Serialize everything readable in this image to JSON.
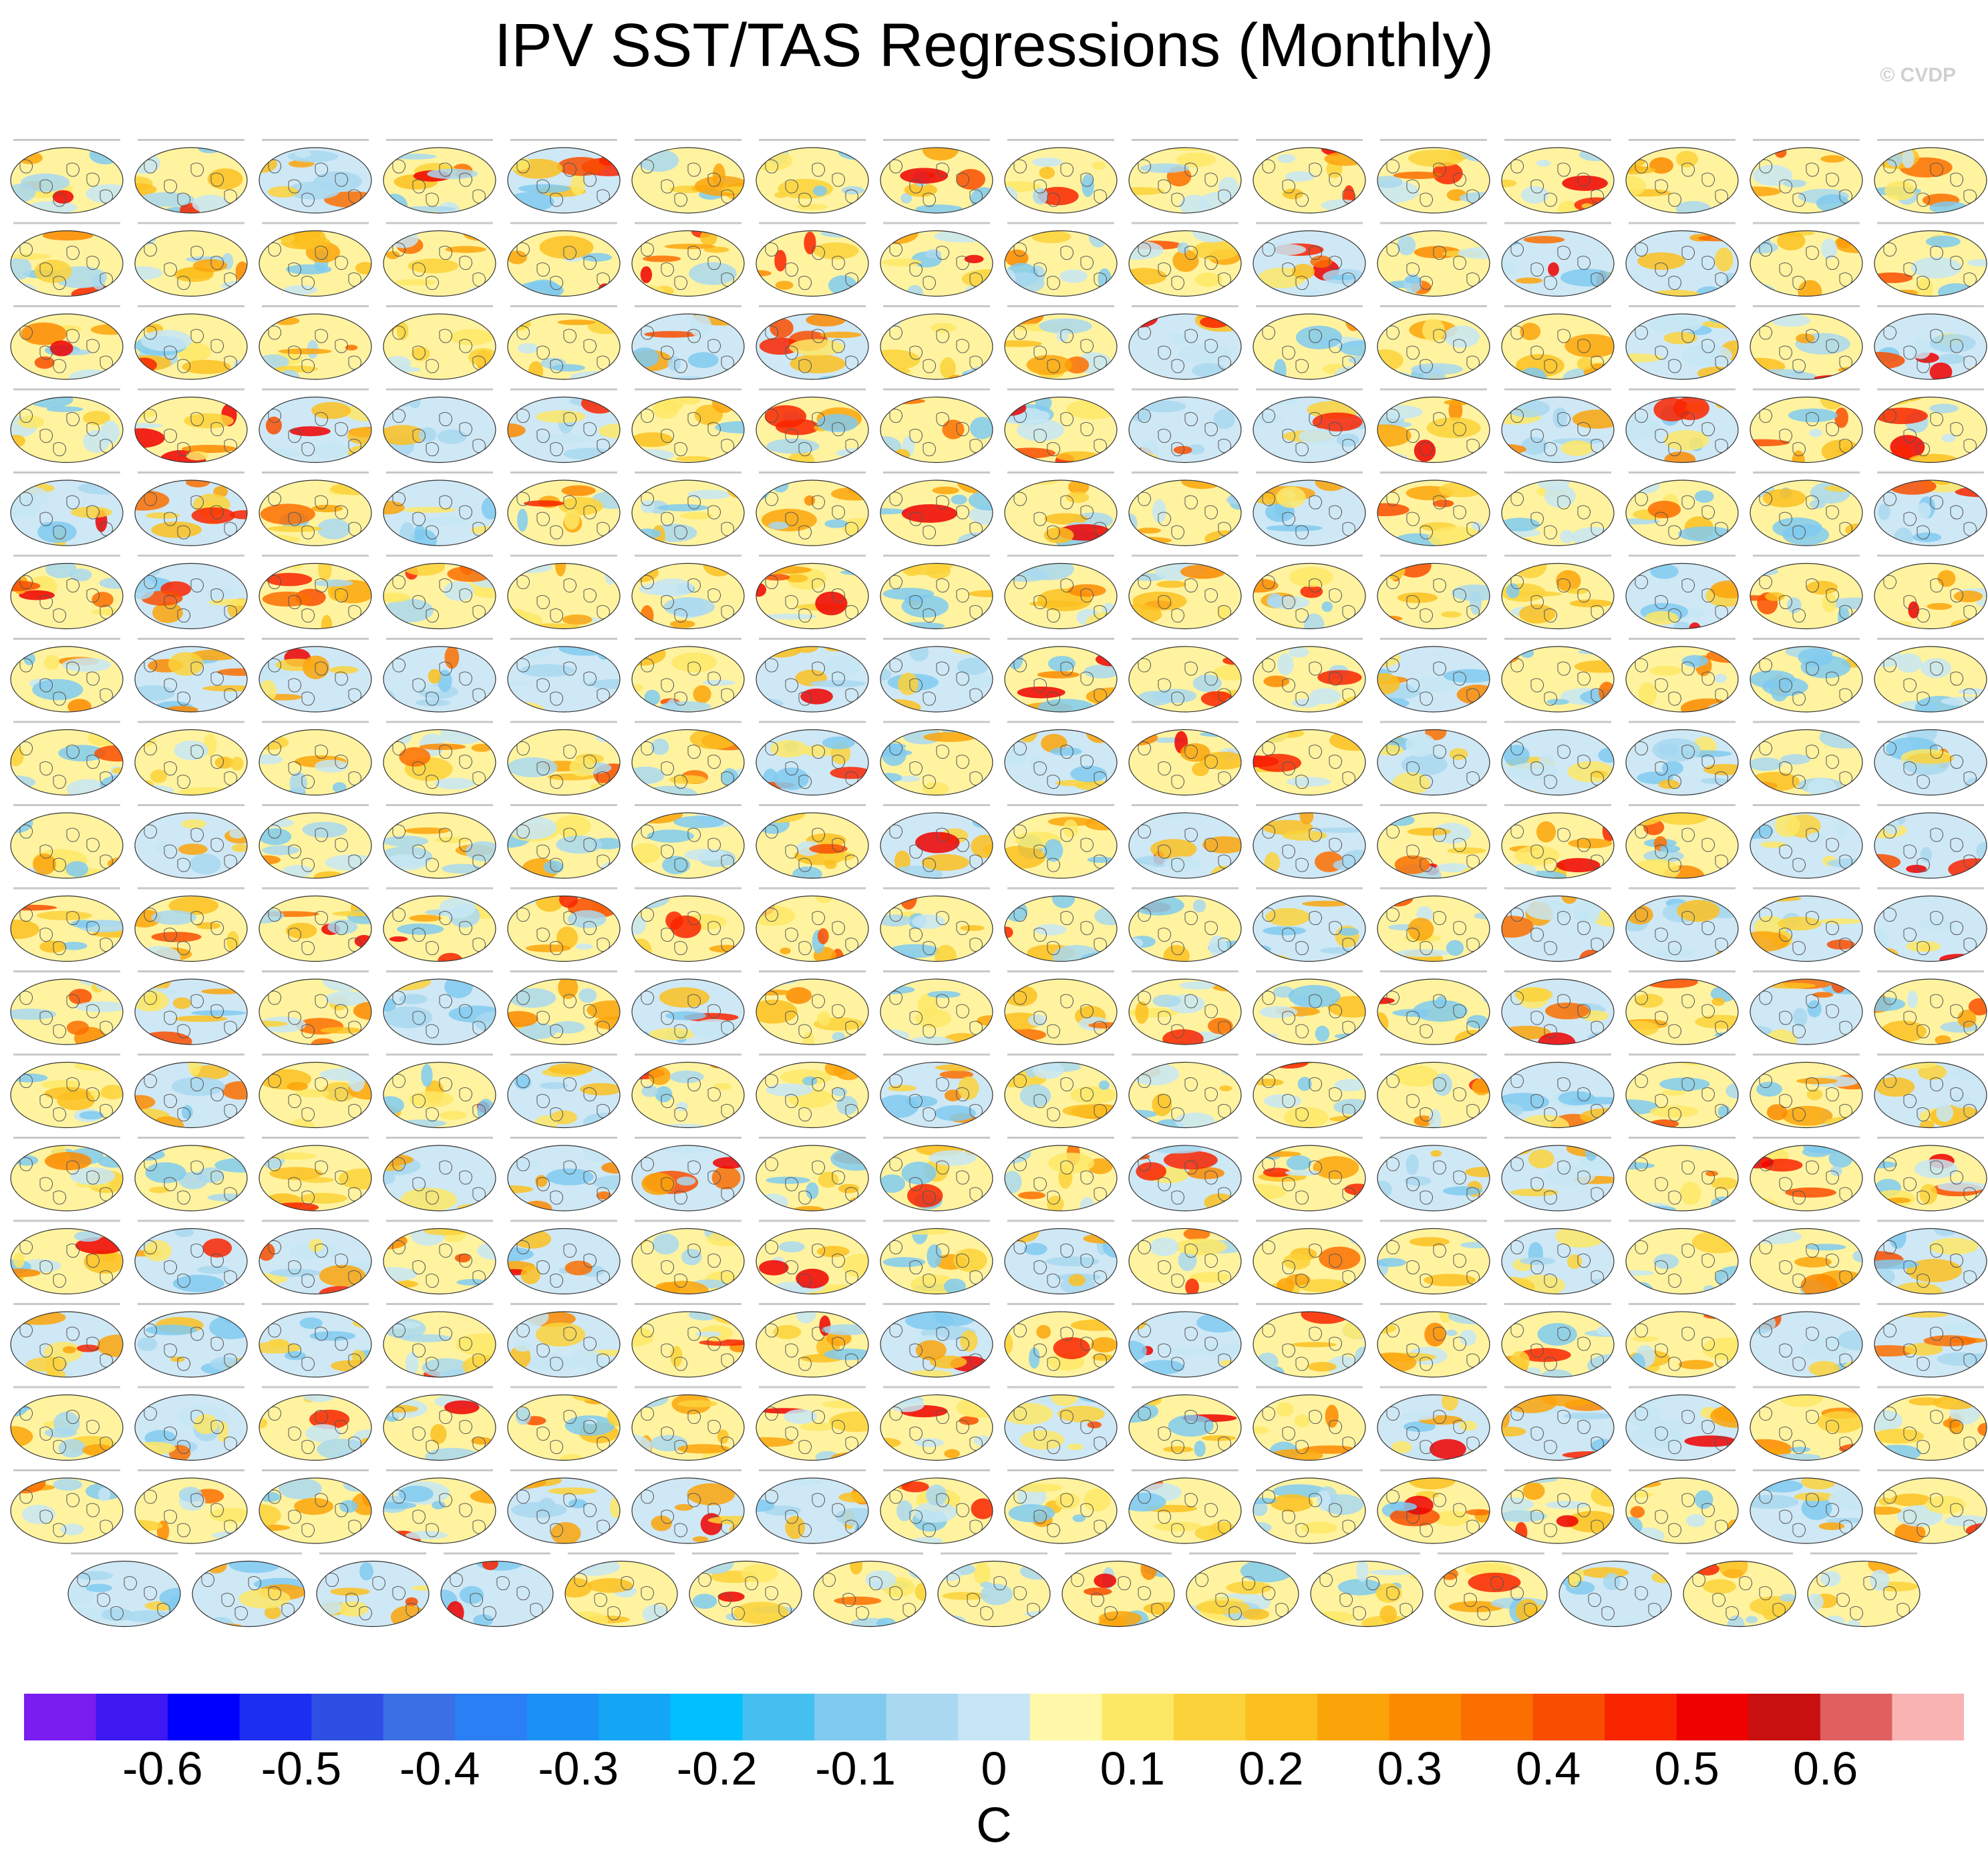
{
  "title": "IPV SST/TAS Regressions (Monthly)",
  "copyright": "© CVDP",
  "chart_data": {
    "type": "heatmap",
    "title": "IPV SST/TAS Regressions (Monthly)",
    "projection": "global maps (Pacific-centered ellipse), one panel per model ensemble member",
    "layout": {
      "rows_full": 17,
      "panels_per_row": 16,
      "final_row_panels": 15
    },
    "panels_total": 287,
    "panel_titles_visible": [
      "ERSST v5/BEST",
      "HadISST/GISTEMP",
      "ACCESS-ESM1-5",
      "CanESM5",
      "CESM1",
      "CESM2",
      "CESM2-LE"
    ],
    "colorbar": {
      "units": "C",
      "ticks": [
        -0.6,
        -0.5,
        -0.4,
        -0.3,
        -0.2,
        -0.1,
        0,
        0.1,
        0.2,
        0.3,
        0.4,
        0.5,
        0.6
      ],
      "tick_labels": [
        "-0.6",
        "-0.5",
        "-0.4",
        "-0.3",
        "-0.2",
        "-0.1",
        "0",
        "0.1",
        "0.2",
        "0.3",
        "0.4",
        "0.5",
        "0.6"
      ],
      "range": [
        -0.7,
        0.7
      ],
      "colors": [
        "#7a1df0",
        "#3d18f0",
        "#0000ff",
        "#1c2ff0",
        "#2e4fe4",
        "#3b6fe6",
        "#2a7ff5",
        "#1c91f5",
        "#14a6f5",
        "#00c0ff",
        "#45bff0",
        "#80caf0",
        "#a9d8f0",
        "#c7e6f5",
        "#fff8a8",
        "#fde866",
        "#fbd23a",
        "#fbbf20",
        "#fba40a",
        "#fb8a00",
        "#fb6e00",
        "#f94d00",
        "#f92500",
        "#ee0000",
        "#c91010",
        "#e06060",
        "#f9b3b3"
      ]
    }
  }
}
